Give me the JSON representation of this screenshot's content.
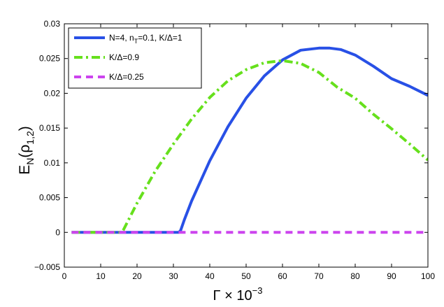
{
  "chart_data": {
    "type": "line",
    "xlabel": "Γ × 10",
    "xlabel_exponent": "−3",
    "ylabel": "E",
    "ylabel_sub": "N",
    "ylabel_arg": "(ρ",
    "ylabel_arg_sub": "1,2",
    "ylabel_close": ")",
    "xlim": [
      0,
      100
    ],
    "ylim": [
      -0.005,
      0.03
    ],
    "xticks": [
      0,
      10,
      20,
      30,
      40,
      50,
      60,
      70,
      80,
      90,
      100
    ],
    "yticks": [
      -0.005,
      0,
      0.005,
      0.01,
      0.015,
      0.02,
      0.025,
      0.03
    ],
    "ytick_labels": [
      "−0.005",
      "0",
      "0.005",
      "0.01",
      "0.015",
      "0.02",
      "0.025",
      "0.03"
    ],
    "xtick_labels": [
      "0",
      "10",
      "20",
      "30",
      "40",
      "50",
      "60",
      "70",
      "80",
      "90",
      "100"
    ],
    "grid": false,
    "legend_position": "top-left",
    "series": [
      {
        "name": "N=4, n_T=0.1, K/Δ=1",
        "legend_parts": [
          "N=4, n",
          "T",
          "=0.1, K/Δ=1"
        ],
        "color": "#2850e6",
        "style": "solid",
        "x": [
          2,
          10,
          20,
          30,
          31.5,
          32,
          33,
          35,
          40,
          45,
          50,
          55,
          60,
          65,
          70,
          73,
          76,
          80,
          85,
          90,
          95,
          100
        ],
        "y": [
          0,
          0,
          0,
          0,
          0,
          0.0003,
          0.0018,
          0.0045,
          0.0103,
          0.0152,
          0.0193,
          0.0225,
          0.0248,
          0.0262,
          0.0265,
          0.0265,
          0.0263,
          0.0255,
          0.0239,
          0.0221,
          0.021,
          0.0197
        ]
      },
      {
        "name": "K/Δ=0.9",
        "color": "#66e01c",
        "style": "dash-dot",
        "x": [
          2,
          10,
          15,
          16,
          20,
          25,
          30,
          35,
          40,
          45,
          50,
          55,
          60,
          65,
          70,
          75,
          80,
          85,
          90,
          95,
          100
        ],
        "y": [
          0,
          0,
          0,
          0.0001,
          0.0042,
          0.0088,
          0.0127,
          0.0163,
          0.0194,
          0.0218,
          0.0234,
          0.0244,
          0.0247,
          0.0243,
          0.023,
          0.0209,
          0.0193,
          0.017,
          0.0149,
          0.0127,
          0.0104
        ]
      },
      {
        "name": "K/Δ=0.25",
        "color": "#cc44ee",
        "style": "dashed",
        "x": [
          2,
          100
        ],
        "y": [
          0,
          0
        ]
      }
    ]
  }
}
